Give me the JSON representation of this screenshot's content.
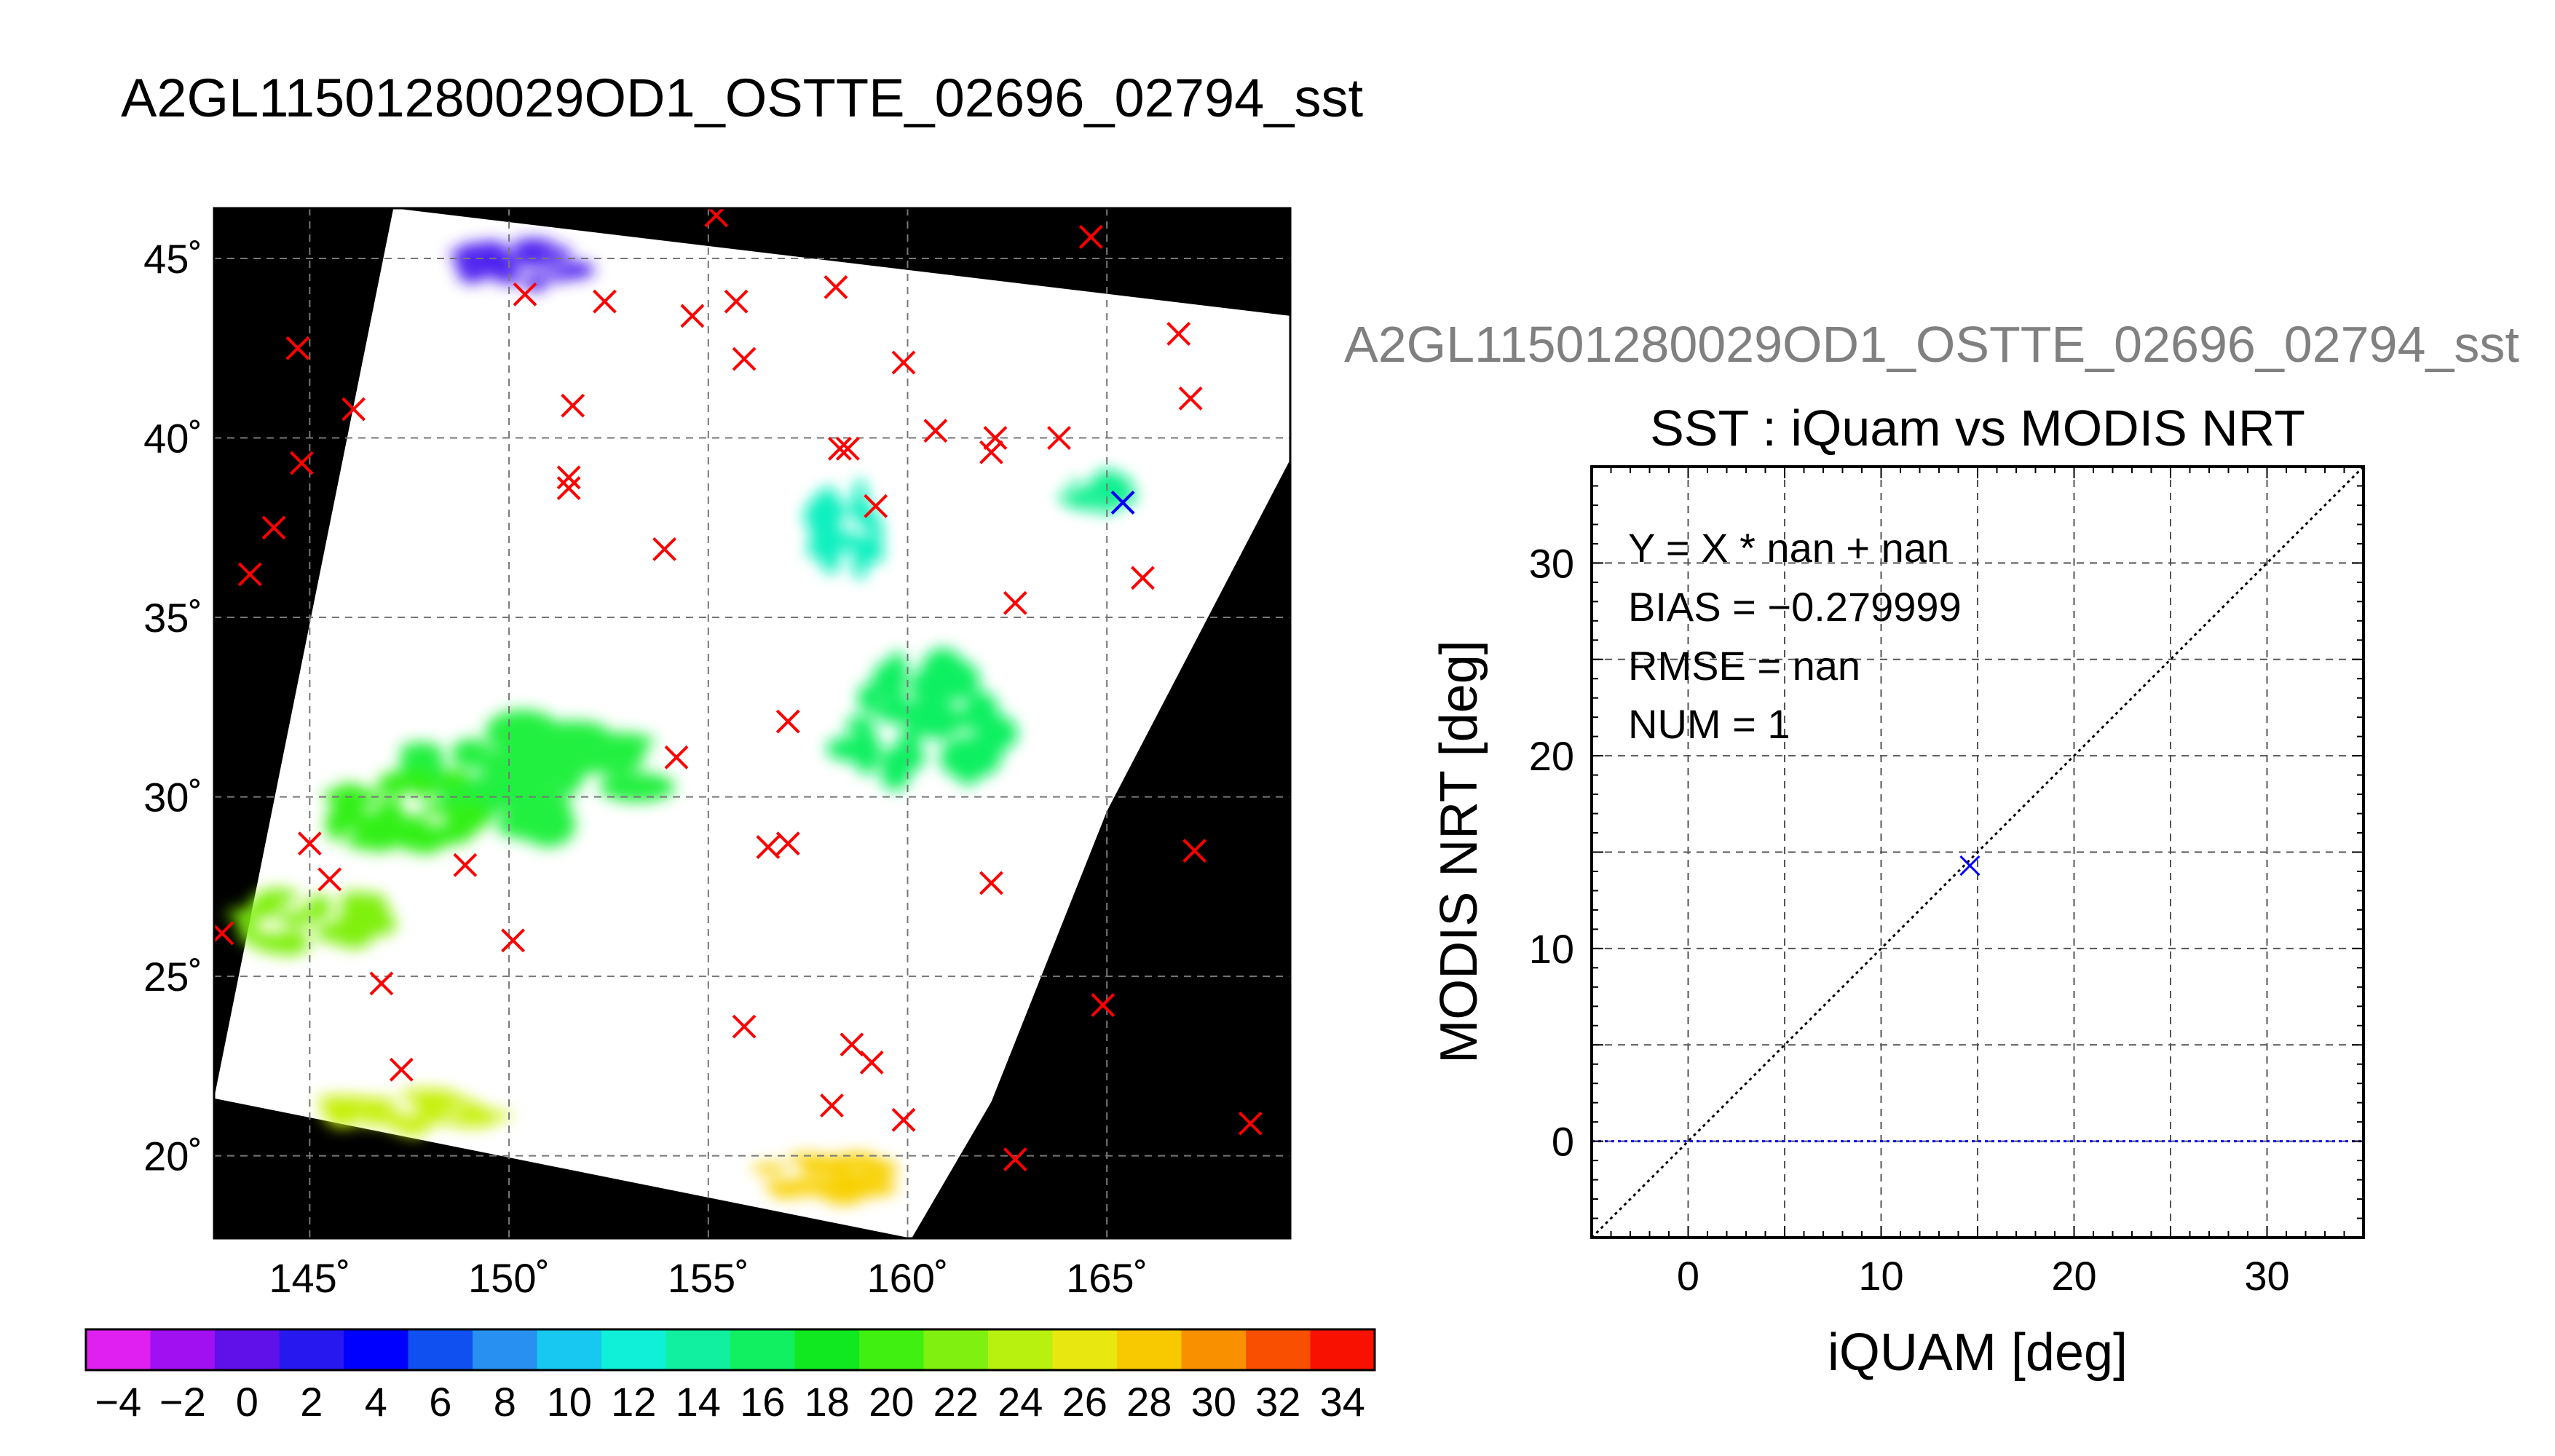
{
  "page_title": "A2GL11501280029OD1_OSTTE_02696_02794_sst",
  "chart_data": [
    {
      "type": "map",
      "title": "",
      "xlabel": "",
      "ylabel": "",
      "xlim": [
        142.6,
        169.6
      ],
      "ylim": [
        17.7,
        46.4
      ],
      "x_ticks": [
        145,
        150,
        155,
        160,
        165
      ],
      "x_tick_labels": [
        "145˚",
        "150˚",
        "155˚",
        "160˚",
        "165˚"
      ],
      "y_ticks": [
        20,
        25,
        30,
        35,
        40,
        45
      ],
      "y_tick_labels": [
        "20˚",
        "25˚",
        "30˚",
        "35˚",
        "40˚",
        "45˚"
      ],
      "grid": true,
      "background_color": "#000000",
      "swath_color": "#ffffff",
      "swath_outline": [
        [
          147.1,
          46.4
        ],
        [
          169.6,
          43.4
        ],
        [
          169.6,
          39.4
        ],
        [
          165.0,
          29.6
        ],
        [
          162.1,
          21.5
        ],
        [
          160.1,
          17.7
        ],
        [
          142.6,
          21.6
        ]
      ],
      "colorbar": {
        "min": -5,
        "max": 35,
        "step": 2,
        "tick_values": [
          -4,
          -2,
          0,
          2,
          4,
          6,
          8,
          10,
          12,
          14,
          16,
          18,
          20,
          22,
          24,
          26,
          28,
          30,
          32,
          34
        ],
        "tick_labels": [
          "−4",
          "−2",
          "0",
          "2",
          "4",
          "6",
          "8",
          "10",
          "12",
          "14",
          "16",
          "18",
          "20",
          "22",
          "24",
          "26",
          "28",
          "30",
          "32",
          "34"
        ],
        "colors": [
          "#e020f0",
          "#a010f0",
          "#6010e8",
          "#2818f0",
          "#0000ff",
          "#1050f0",
          "#2890f0",
          "#18c8f0",
          "#10f0d8",
          "#10f0a0",
          "#10f060",
          "#10e820",
          "#40f010",
          "#80f010",
          "#b8f010",
          "#e8e810",
          "#f8c800",
          "#f89000",
          "#f85000",
          "#f81000"
        ]
      },
      "sst_regions": [
        {
          "description_color": "#5020f0",
          "center": [
            150.0,
            44.8
          ],
          "spread": [
            1.8,
            0.6
          ]
        },
        {
          "description_color": "#10f0c0",
          "center": [
            158.5,
            37.5
          ],
          "spread": [
            1.0,
            1.2
          ]
        },
        {
          "description_color": "#10f090",
          "center": [
            165.0,
            38.5
          ],
          "spread": [
            1.0,
            0.5
          ]
        },
        {
          "description_color": "#10f060",
          "center": [
            160.5,
            32.0
          ],
          "spread": [
            2.2,
            1.6
          ]
        },
        {
          "description_color": "#20f040",
          "center": [
            150.5,
            30.8
          ],
          "spread": [
            3.0,
            1.6
          ]
        },
        {
          "description_color": "#30f018",
          "center": [
            147.5,
            29.5
          ],
          "spread": [
            2.0,
            1.2
          ]
        },
        {
          "description_color": "#80f010",
          "center": [
            145.0,
            26.6
          ],
          "spread": [
            1.8,
            0.8
          ]
        },
        {
          "description_color": "#c8f010",
          "center": [
            147.5,
            21.3
          ],
          "spread": [
            2.2,
            0.6
          ]
        },
        {
          "description_color": "#f8d000",
          "center": [
            158.0,
            19.4
          ],
          "spread": [
            1.8,
            0.6
          ]
        }
      ],
      "markers": [
        {
          "x": 155.2,
          "y": 46.2,
          "color": "#ff0000"
        },
        {
          "x": 164.6,
          "y": 45.6,
          "color": "#ff0000"
        },
        {
          "x": 150.4,
          "y": 44.0,
          "color": "#ff0000"
        },
        {
          "x": 152.4,
          "y": 43.8,
          "color": "#ff0000"
        },
        {
          "x": 154.6,
          "y": 43.4,
          "color": "#ff0000"
        },
        {
          "x": 155.7,
          "y": 43.8,
          "color": "#ff0000"
        },
        {
          "x": 158.2,
          "y": 44.2,
          "color": "#ff0000"
        },
        {
          "x": 144.7,
          "y": 42.5,
          "color": "#ff0000"
        },
        {
          "x": 155.9,
          "y": 42.2,
          "color": "#ff0000"
        },
        {
          "x": 159.9,
          "y": 42.1,
          "color": "#ff0000"
        },
        {
          "x": 166.8,
          "y": 42.9,
          "color": "#ff0000"
        },
        {
          "x": 146.1,
          "y": 40.8,
          "color": "#ff0000"
        },
        {
          "x": 151.6,
          "y": 40.9,
          "color": "#ff0000"
        },
        {
          "x": 167.1,
          "y": 41.1,
          "color": "#ff0000"
        },
        {
          "x": 160.7,
          "y": 40.2,
          "color": "#ff0000"
        },
        {
          "x": 162.2,
          "y": 40.0,
          "color": "#ff0000"
        },
        {
          "x": 163.8,
          "y": 40.0,
          "color": "#ff0000"
        },
        {
          "x": 158.3,
          "y": 39.7,
          "color": "#ff0000"
        },
        {
          "x": 158.5,
          "y": 39.7,
          "color": "#ff0000"
        },
        {
          "x": 162.1,
          "y": 39.6,
          "color": "#ff0000"
        },
        {
          "x": 144.8,
          "y": 39.3,
          "color": "#ff0000"
        },
        {
          "x": 151.5,
          "y": 38.9,
          "color": "#ff0000"
        },
        {
          "x": 151.5,
          "y": 38.6,
          "color": "#ff0000"
        },
        {
          "x": 159.2,
          "y": 38.1,
          "color": "#ff0000"
        },
        {
          "x": 144.1,
          "y": 37.5,
          "color": "#ff0000"
        },
        {
          "x": 153.9,
          "y": 36.9,
          "color": "#ff0000"
        },
        {
          "x": 143.5,
          "y": 36.2,
          "color": "#ff0000"
        },
        {
          "x": 165.9,
          "y": 36.1,
          "color": "#ff0000"
        },
        {
          "x": 162.7,
          "y": 35.4,
          "color": "#ff0000"
        },
        {
          "x": 157.0,
          "y": 32.1,
          "color": "#ff0000"
        },
        {
          "x": 154.2,
          "y": 31.1,
          "color": "#ff0000"
        },
        {
          "x": 145.0,
          "y": 28.7,
          "color": "#ff0000"
        },
        {
          "x": 156.5,
          "y": 28.6,
          "color": "#ff0000"
        },
        {
          "x": 157.0,
          "y": 28.7,
          "color": "#ff0000"
        },
        {
          "x": 167.2,
          "y": 28.5,
          "color": "#ff0000"
        },
        {
          "x": 148.9,
          "y": 28.1,
          "color": "#ff0000"
        },
        {
          "x": 145.5,
          "y": 27.7,
          "color": "#ff0000"
        },
        {
          "x": 162.1,
          "y": 27.6,
          "color": "#ff0000"
        },
        {
          "x": 142.8,
          "y": 26.2,
          "color": "#ff0000"
        },
        {
          "x": 150.1,
          "y": 26.0,
          "color": "#ff0000"
        },
        {
          "x": 146.8,
          "y": 24.8,
          "color": "#ff0000"
        },
        {
          "x": 164.9,
          "y": 24.2,
          "color": "#ff0000"
        },
        {
          "x": 155.9,
          "y": 23.6,
          "color": "#ff0000"
        },
        {
          "x": 158.6,
          "y": 23.1,
          "color": "#ff0000"
        },
        {
          "x": 159.1,
          "y": 22.6,
          "color": "#ff0000"
        },
        {
          "x": 147.3,
          "y": 22.4,
          "color": "#ff0000"
        },
        {
          "x": 158.1,
          "y": 21.4,
          "color": "#ff0000"
        },
        {
          "x": 159.9,
          "y": 21.0,
          "color": "#ff0000"
        },
        {
          "x": 168.6,
          "y": 20.9,
          "color": "#ff0000"
        },
        {
          "x": 162.7,
          "y": 19.9,
          "color": "#ff0000"
        },
        {
          "x": 165.4,
          "y": 38.2,
          "color": "#ff0000"
        },
        {
          "x": 165.4,
          "y": 38.2,
          "color": "#0000ff"
        }
      ]
    },
    {
      "type": "scatter",
      "subtitle": "A2GL11501280029OD1_OSTTE_02696_02794_sst",
      "title": "SST : iQuam vs MODIS NRT",
      "xlabel": "iQUAM [deg]",
      "ylabel": "MODIS NRT [deg]",
      "xlim": [
        -5,
        35
      ],
      "ylim": [
        -5,
        35
      ],
      "x_ticks": [
        0,
        10,
        20,
        30
      ],
      "y_ticks": [
        0,
        10,
        20,
        30
      ],
      "grid_step": 5,
      "grid": true,
      "stats": [
        "Y = X * nan + nan",
        "BIAS = −0.279999",
        "RMSE = nan",
        "NUM = 1"
      ],
      "points": [
        {
          "x": 14.6,
          "y": 14.3
        }
      ],
      "point_color": "#0000ff",
      "identity_line": {
        "from": [
          -5,
          -5
        ],
        "to": [
          35,
          35
        ],
        "color": "#000000"
      },
      "fit_line": {
        "y": 0,
        "color": "#0000ff"
      }
    }
  ]
}
